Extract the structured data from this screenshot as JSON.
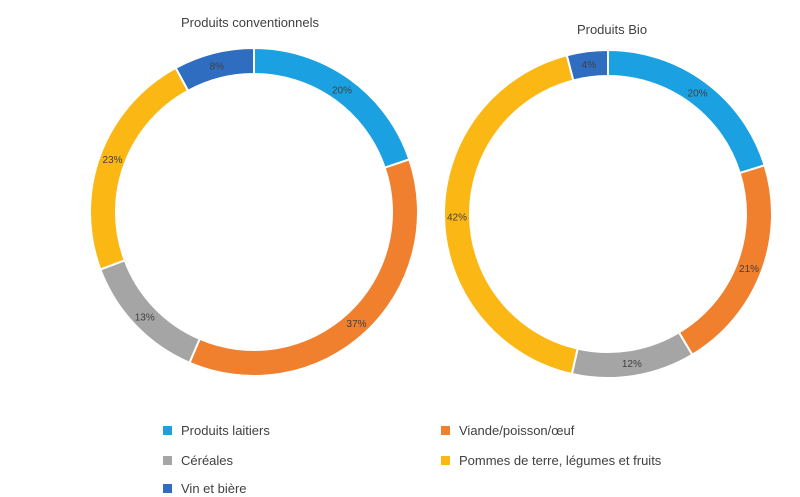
{
  "chart_data": [
    {
      "type": "pie",
      "title": "Produits conventionnels",
      "categories": [
        "Produits laitiers",
        "Viande/poisson/œuf",
        "Céréales",
        "Pommes de terre, légumes et fruits",
        "Vin et bière"
      ],
      "values": [
        20,
        37,
        13,
        23,
        8
      ],
      "labels": [
        "20%",
        "37%",
        "13%",
        "23%",
        "8%"
      ]
    },
    {
      "type": "pie",
      "title": "Produits Bio",
      "categories": [
        "Produits laitiers",
        "Viande/poisson/œuf",
        "Céréales",
        "Pommes de terre, légumes et fruits",
        "Vin et bière"
      ],
      "values": [
        20,
        21,
        12,
        42,
        4
      ],
      "labels": [
        "20%",
        "21%",
        "12%",
        "42%",
        "4%"
      ]
    }
  ],
  "legend": {
    "placement": "bottom",
    "items": [
      {
        "label": "Produits laitiers",
        "color": "#1BA1E2"
      },
      {
        "label": "Viande/poisson/œuf",
        "color": "#F07F2E"
      },
      {
        "label": "Céréales",
        "color": "#A5A5A5"
      },
      {
        "label": "Pommes de terre, légumes et fruits",
        "color": "#FBB814"
      },
      {
        "label": "Vin et bière",
        "color": "#2E6DC0"
      }
    ]
  },
  "colors": [
    "#1BA1E2",
    "#F07F2E",
    "#A5A5A5",
    "#FBB814",
    "#2E6DC0"
  ]
}
